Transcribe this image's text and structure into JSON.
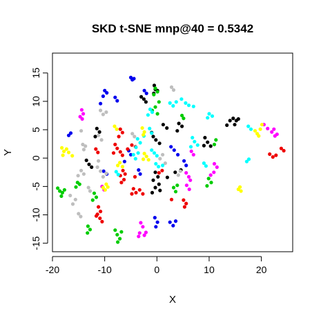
{
  "chart_data": {
    "type": "scatter",
    "title": "SKD t-SNE mnp@40 = 0.5342",
    "xlabel": "X",
    "ylabel": "Y",
    "xlim": [
      -20,
      26
    ],
    "ylim": [
      -16.5,
      18.5
    ],
    "xticks": [
      -20,
      -10,
      0,
      10,
      20
    ],
    "yticks": [
      -15,
      -10,
      -5,
      0,
      5,
      10,
      15
    ],
    "xtick_labels": [
      "-20",
      "-10",
      "0",
      "10",
      "20"
    ],
    "ytick_labels": [
      "-15",
      "-10",
      "-5",
      "0",
      "5",
      "10",
      "15"
    ],
    "grid": false,
    "legend": "none",
    "series": [
      {
        "color": "#000000",
        "points": [
          [
            -0.5,
            12.8
          ],
          [
            -0.3,
            12.1
          ],
          [
            0.1,
            11.9
          ],
          [
            -0.6,
            11.4
          ],
          [
            -3.0,
            10.8
          ],
          [
            -2.5,
            10.4
          ],
          [
            -2.1,
            9.9
          ],
          [
            -11.5,
            5.2
          ],
          [
            -11.0,
            4.6
          ],
          [
            -11.8,
            3.8
          ],
          [
            -1.0,
            4.5
          ],
          [
            -0.7,
            3.8
          ],
          [
            -0.2,
            3.2
          ],
          [
            0.5,
            2.6
          ],
          [
            4.2,
            6.1
          ],
          [
            4.8,
            5.6
          ],
          [
            3.9,
            4.8
          ],
          [
            1.2,
            5.9
          ],
          [
            1.9,
            5.3
          ],
          [
            9.2,
            3.6
          ],
          [
            9.7,
            2.8
          ],
          [
            10.3,
            2.1
          ],
          [
            9.0,
            2.2
          ],
          [
            13.4,
            5.8
          ],
          [
            14.0,
            6.6
          ],
          [
            14.6,
            7.0
          ],
          [
            15.2,
            6.6
          ],
          [
            15.6,
            6.9
          ],
          [
            14.9,
            5.9
          ],
          [
            -13.5,
            -0.4
          ],
          [
            -13.0,
            -1.1
          ],
          [
            -12.5,
            -1.6
          ],
          [
            -0.3,
            -2.5
          ],
          [
            0.2,
            -3.3
          ],
          [
            -0.7,
            -3.9
          ],
          [
            0.4,
            -4.6
          ],
          [
            -0.3,
            -5.2
          ],
          [
            0.6,
            -5.7
          ],
          [
            -0.9,
            -6.1
          ],
          [
            2.0,
            -3.4
          ],
          [
            3.5,
            -2.5
          ],
          [
            4.6,
            -2.1
          ]
        ]
      },
      {
        "color": "#0000ee",
        "points": [
          [
            -5.0,
            14.2
          ],
          [
            -4.7,
            13.8
          ],
          [
            -4.4,
            14.0
          ],
          [
            -10.0,
            11.9
          ],
          [
            -9.6,
            11.5
          ],
          [
            -10.3,
            10.9
          ],
          [
            -8.0,
            10.7
          ],
          [
            -7.6,
            10.1
          ],
          [
            -10.8,
            9.6
          ],
          [
            -2.4,
            11.9
          ],
          [
            -2.0,
            11.4
          ],
          [
            -16.5,
            4.4
          ],
          [
            -16.9,
            4.0
          ],
          [
            -10.2,
            -2.3
          ],
          [
            -9.6,
            -2.8
          ],
          [
            -3.5,
            -2.1
          ],
          [
            -3.2,
            -2.8
          ],
          [
            -0.4,
            -10.5
          ],
          [
            0.1,
            -11.3
          ],
          [
            -0.2,
            -12.1
          ],
          [
            2.5,
            -11.3
          ],
          [
            3.1,
            -11.9
          ],
          [
            3.6,
            -11.1
          ],
          [
            2.7,
            2.0
          ],
          [
            3.3,
            1.4
          ],
          [
            4.0,
            0.6
          ],
          [
            5.2,
            -0.5
          ],
          [
            5.6,
            -1.3
          ],
          [
            -5.4,
            1.3
          ],
          [
            -5.0,
            0.6
          ],
          [
            -6.2,
            -0.6
          ]
        ]
      },
      {
        "color": "#00cc00",
        "points": [
          [
            -0.3,
            12.3
          ],
          [
            0.1,
            11.7
          ],
          [
            -0.6,
            11.2
          ],
          [
            0.4,
            9.9
          ],
          [
            -0.3,
            9.0
          ],
          [
            -0.9,
            8.4
          ],
          [
            0.1,
            7.8
          ],
          [
            4.8,
            7.5
          ],
          [
            5.1,
            7.0
          ],
          [
            -12.0,
            -6.2
          ],
          [
            -11.6,
            -6.9
          ],
          [
            -12.3,
            -7.4
          ],
          [
            -19.0,
            -5.3
          ],
          [
            -18.6,
            -5.8
          ],
          [
            -18.1,
            -6.1
          ],
          [
            -17.7,
            -5.6
          ],
          [
            -18.3,
            -6.7
          ],
          [
            -15.2,
            -4.3
          ],
          [
            -14.8,
            -4.6
          ],
          [
            -15.5,
            -5.1
          ],
          [
            -13.2,
            -12.0
          ],
          [
            -12.8,
            -12.6
          ],
          [
            -13.3,
            -13.2
          ],
          [
            -8.0,
            -12.7
          ],
          [
            -7.6,
            -13.5
          ],
          [
            -7.1,
            -14.2
          ],
          [
            -7.5,
            -14.8
          ],
          [
            -6.8,
            -13.0
          ],
          [
            3.2,
            -5.2
          ],
          [
            3.6,
            -5.9
          ],
          [
            3.9,
            -4.8
          ],
          [
            9.9,
            -3.6
          ],
          [
            10.4,
            -4.3
          ],
          [
            9.6,
            -4.9
          ],
          [
            11.3,
            3.2
          ],
          [
            11.0,
            2.4
          ]
        ]
      },
      {
        "color": "#bebebe",
        "points": [
          [
            2.8,
            12.5
          ],
          [
            3.2,
            12.0
          ],
          [
            -10.8,
            8.4
          ],
          [
            -10.3,
            7.7
          ],
          [
            -9.7,
            8.1
          ],
          [
            -11.2,
            4.0
          ],
          [
            -10.6,
            3.2
          ],
          [
            -14.5,
            4.8
          ],
          [
            -14.2,
            2.4
          ],
          [
            -13.7,
            2.1
          ],
          [
            -14.0,
            1.5
          ],
          [
            -11.2,
            -0.5
          ],
          [
            -11.4,
            -1.6
          ],
          [
            -10.8,
            -2.3
          ],
          [
            -9.7,
            -2.7
          ],
          [
            -10.3,
            -3.3
          ],
          [
            -14.5,
            -2.2
          ],
          [
            -14.0,
            -2.8
          ],
          [
            -15.1,
            -3.1
          ],
          [
            -13.1,
            -5.2
          ],
          [
            -12.8,
            -5.8
          ],
          [
            -15.0,
            -9.8
          ],
          [
            -14.6,
            -10.3
          ],
          [
            -16.1,
            -8.1
          ],
          [
            -15.6,
            -7.3
          ],
          [
            -16.6,
            -6.6
          ],
          [
            -4.7,
            4.3
          ],
          [
            -4.3,
            3.8
          ],
          [
            1.1,
            0.6
          ],
          [
            0.6,
            -0.1
          ],
          [
            1.6,
            -0.9
          ],
          [
            4.5,
            -2.3
          ],
          [
            4.1,
            -3.0
          ]
        ]
      },
      {
        "color": "#ee0000",
        "points": [
          [
            -7.0,
            5.1
          ],
          [
            -6.6,
            4.5
          ],
          [
            -7.3,
            3.8
          ],
          [
            -8.0,
            2.4
          ],
          [
            -7.6,
            1.7
          ],
          [
            -8.3,
            0.9
          ],
          [
            -7.0,
            1.1
          ],
          [
            -6.6,
            0.5
          ],
          [
            -5.6,
            1.6
          ],
          [
            -4.8,
            2.3
          ],
          [
            -4.1,
            2.0
          ],
          [
            -11.7,
            1.6
          ],
          [
            -11.3,
            1.0
          ],
          [
            -11.2,
            -8.6
          ],
          [
            -10.8,
            -9.4
          ],
          [
            -11.4,
            -9.9
          ],
          [
            -10.9,
            -10.6
          ],
          [
            -10.5,
            -11.2
          ],
          [
            -11.6,
            -10.2
          ],
          [
            -6.5,
            -2.2
          ],
          [
            -6.1,
            -2.8
          ],
          [
            -7.0,
            -3.1
          ],
          [
            -6.8,
            -4.3
          ],
          [
            -6.3,
            -3.8
          ],
          [
            -4.2,
            -3.3
          ],
          [
            -4.5,
            -5.4
          ],
          [
            -4.0,
            -6.1
          ],
          [
            -3.3,
            -5.6
          ],
          [
            -2.7,
            -6.3
          ],
          [
            -4.8,
            -6.3
          ],
          [
            2.8,
            -7.3
          ],
          [
            5.1,
            -7.4
          ],
          [
            5.6,
            -8.0
          ],
          [
            5.3,
            -8.6
          ],
          [
            21.6,
            0.7
          ],
          [
            22.2,
            0.2
          ],
          [
            22.8,
            0.5
          ],
          [
            23.8,
            1.7
          ],
          [
            24.3,
            1.3
          ],
          [
            0.4,
            -2.6
          ],
          [
            1.0,
            -2.2
          ]
        ]
      },
      {
        "color": "#ff00ff",
        "points": [
          [
            -14.4,
            8.5
          ],
          [
            -14.1,
            7.8
          ],
          [
            -14.7,
            7.3
          ],
          [
            -14.3,
            6.9
          ],
          [
            5.6,
            -2.6
          ],
          [
            6.1,
            -3.3
          ],
          [
            6.4,
            -3.9
          ],
          [
            5.7,
            -4.8
          ],
          [
            6.2,
            -5.5
          ],
          [
            11.0,
            -1.0
          ],
          [
            11.5,
            -1.6
          ],
          [
            10.9,
            -2.5
          ],
          [
            10.3,
            -3.0
          ],
          [
            -3.1,
            -11.4
          ],
          [
            -2.7,
            -12.1
          ],
          [
            -3.3,
            -13.2
          ],
          [
            -2.4,
            -13.6
          ],
          [
            -3.5,
            -13.8
          ],
          [
            -2.1,
            -13.1
          ],
          [
            20.5,
            5.9
          ],
          [
            21.2,
            5.2
          ],
          [
            22.0,
            4.6
          ],
          [
            22.6,
            3.9
          ],
          [
            23.0,
            4.2
          ],
          [
            22.4,
            5.1
          ],
          [
            -10.5,
            -5.0
          ],
          [
            -10.1,
            -5.6
          ],
          [
            6.6,
            1.2
          ],
          [
            7.0,
            0.6
          ]
        ]
      },
      {
        "color": "#00ffff",
        "points": [
          [
            -1.3,
            8.6
          ],
          [
            -0.9,
            8.1
          ],
          [
            -1.7,
            7.6
          ],
          [
            2.5,
            9.7
          ],
          [
            3.1,
            9.2
          ],
          [
            3.7,
            9.9
          ],
          [
            4.7,
            10.4
          ],
          [
            5.5,
            9.7
          ],
          [
            6.1,
            9.3
          ],
          [
            7.0,
            9.1
          ],
          [
            10.0,
            7.8
          ],
          [
            10.6,
            7.4
          ],
          [
            9.7,
            7.1
          ],
          [
            -1.4,
            5.2
          ],
          [
            -1.0,
            4.4
          ],
          [
            -3.7,
            3.4
          ],
          [
            -3.2,
            2.7
          ],
          [
            -4.0,
            1.9
          ],
          [
            -2.5,
            3.9
          ],
          [
            -4.5,
            0.6
          ],
          [
            -4.1,
            -0.1
          ],
          [
            -3.6,
            0.9
          ],
          [
            -1.0,
            1.4
          ],
          [
            -0.5,
            0.9
          ],
          [
            0.0,
            0.4
          ],
          [
            -0.2,
            -1.0
          ],
          [
            0.3,
            -1.5
          ],
          [
            1.1,
            -1.3
          ],
          [
            -7.8,
            -2.4
          ],
          [
            -7.4,
            -2.9
          ],
          [
            6.8,
            3.6
          ],
          [
            7.2,
            2.9
          ],
          [
            7.8,
            2.3
          ],
          [
            6.5,
            2.0
          ],
          [
            17.5,
            5.6
          ],
          [
            18.0,
            5.1
          ],
          [
            17.2,
            -0.6
          ],
          [
            17.6,
            -0.2
          ],
          [
            9.0,
            -0.9
          ],
          [
            9.4,
            -1.4
          ]
        ]
      },
      {
        "color": "#ffff00",
        "points": [
          [
            -8.1,
            5.6
          ],
          [
            -7.7,
            5.1
          ],
          [
            -2.8,
            5.3
          ],
          [
            -2.4,
            4.6
          ],
          [
            -2.6,
            4.1
          ],
          [
            -18.2,
            1.8
          ],
          [
            -17.8,
            1.2
          ],
          [
            -17.3,
            1.6
          ],
          [
            -16.9,
            1.0
          ],
          [
            -16.2,
            0.4
          ],
          [
            -18.0,
            0.5
          ],
          [
            -10.3,
            -5.2
          ],
          [
            -9.9,
            -5.6
          ],
          [
            -9.4,
            -5.1
          ],
          [
            -9.7,
            -4.6
          ],
          [
            -2.4,
            0.8
          ],
          [
            -2.0,
            0.3
          ],
          [
            -1.6,
            -0.3
          ],
          [
            -2.6,
            -0.2
          ],
          [
            15.6,
            -5.5
          ],
          [
            16.1,
            -5.8
          ],
          [
            15.9,
            -5.1
          ],
          [
            18.8,
            4.8
          ],
          [
            19.2,
            4.3
          ],
          [
            19.8,
            5.1
          ],
          [
            20.1,
            5.9
          ],
          [
            19.5,
            3.9
          ],
          [
            -7.1,
            -0.8
          ],
          [
            -7.5,
            -1.3
          ],
          [
            -6.6,
            -1.5
          ]
        ]
      }
    ]
  }
}
